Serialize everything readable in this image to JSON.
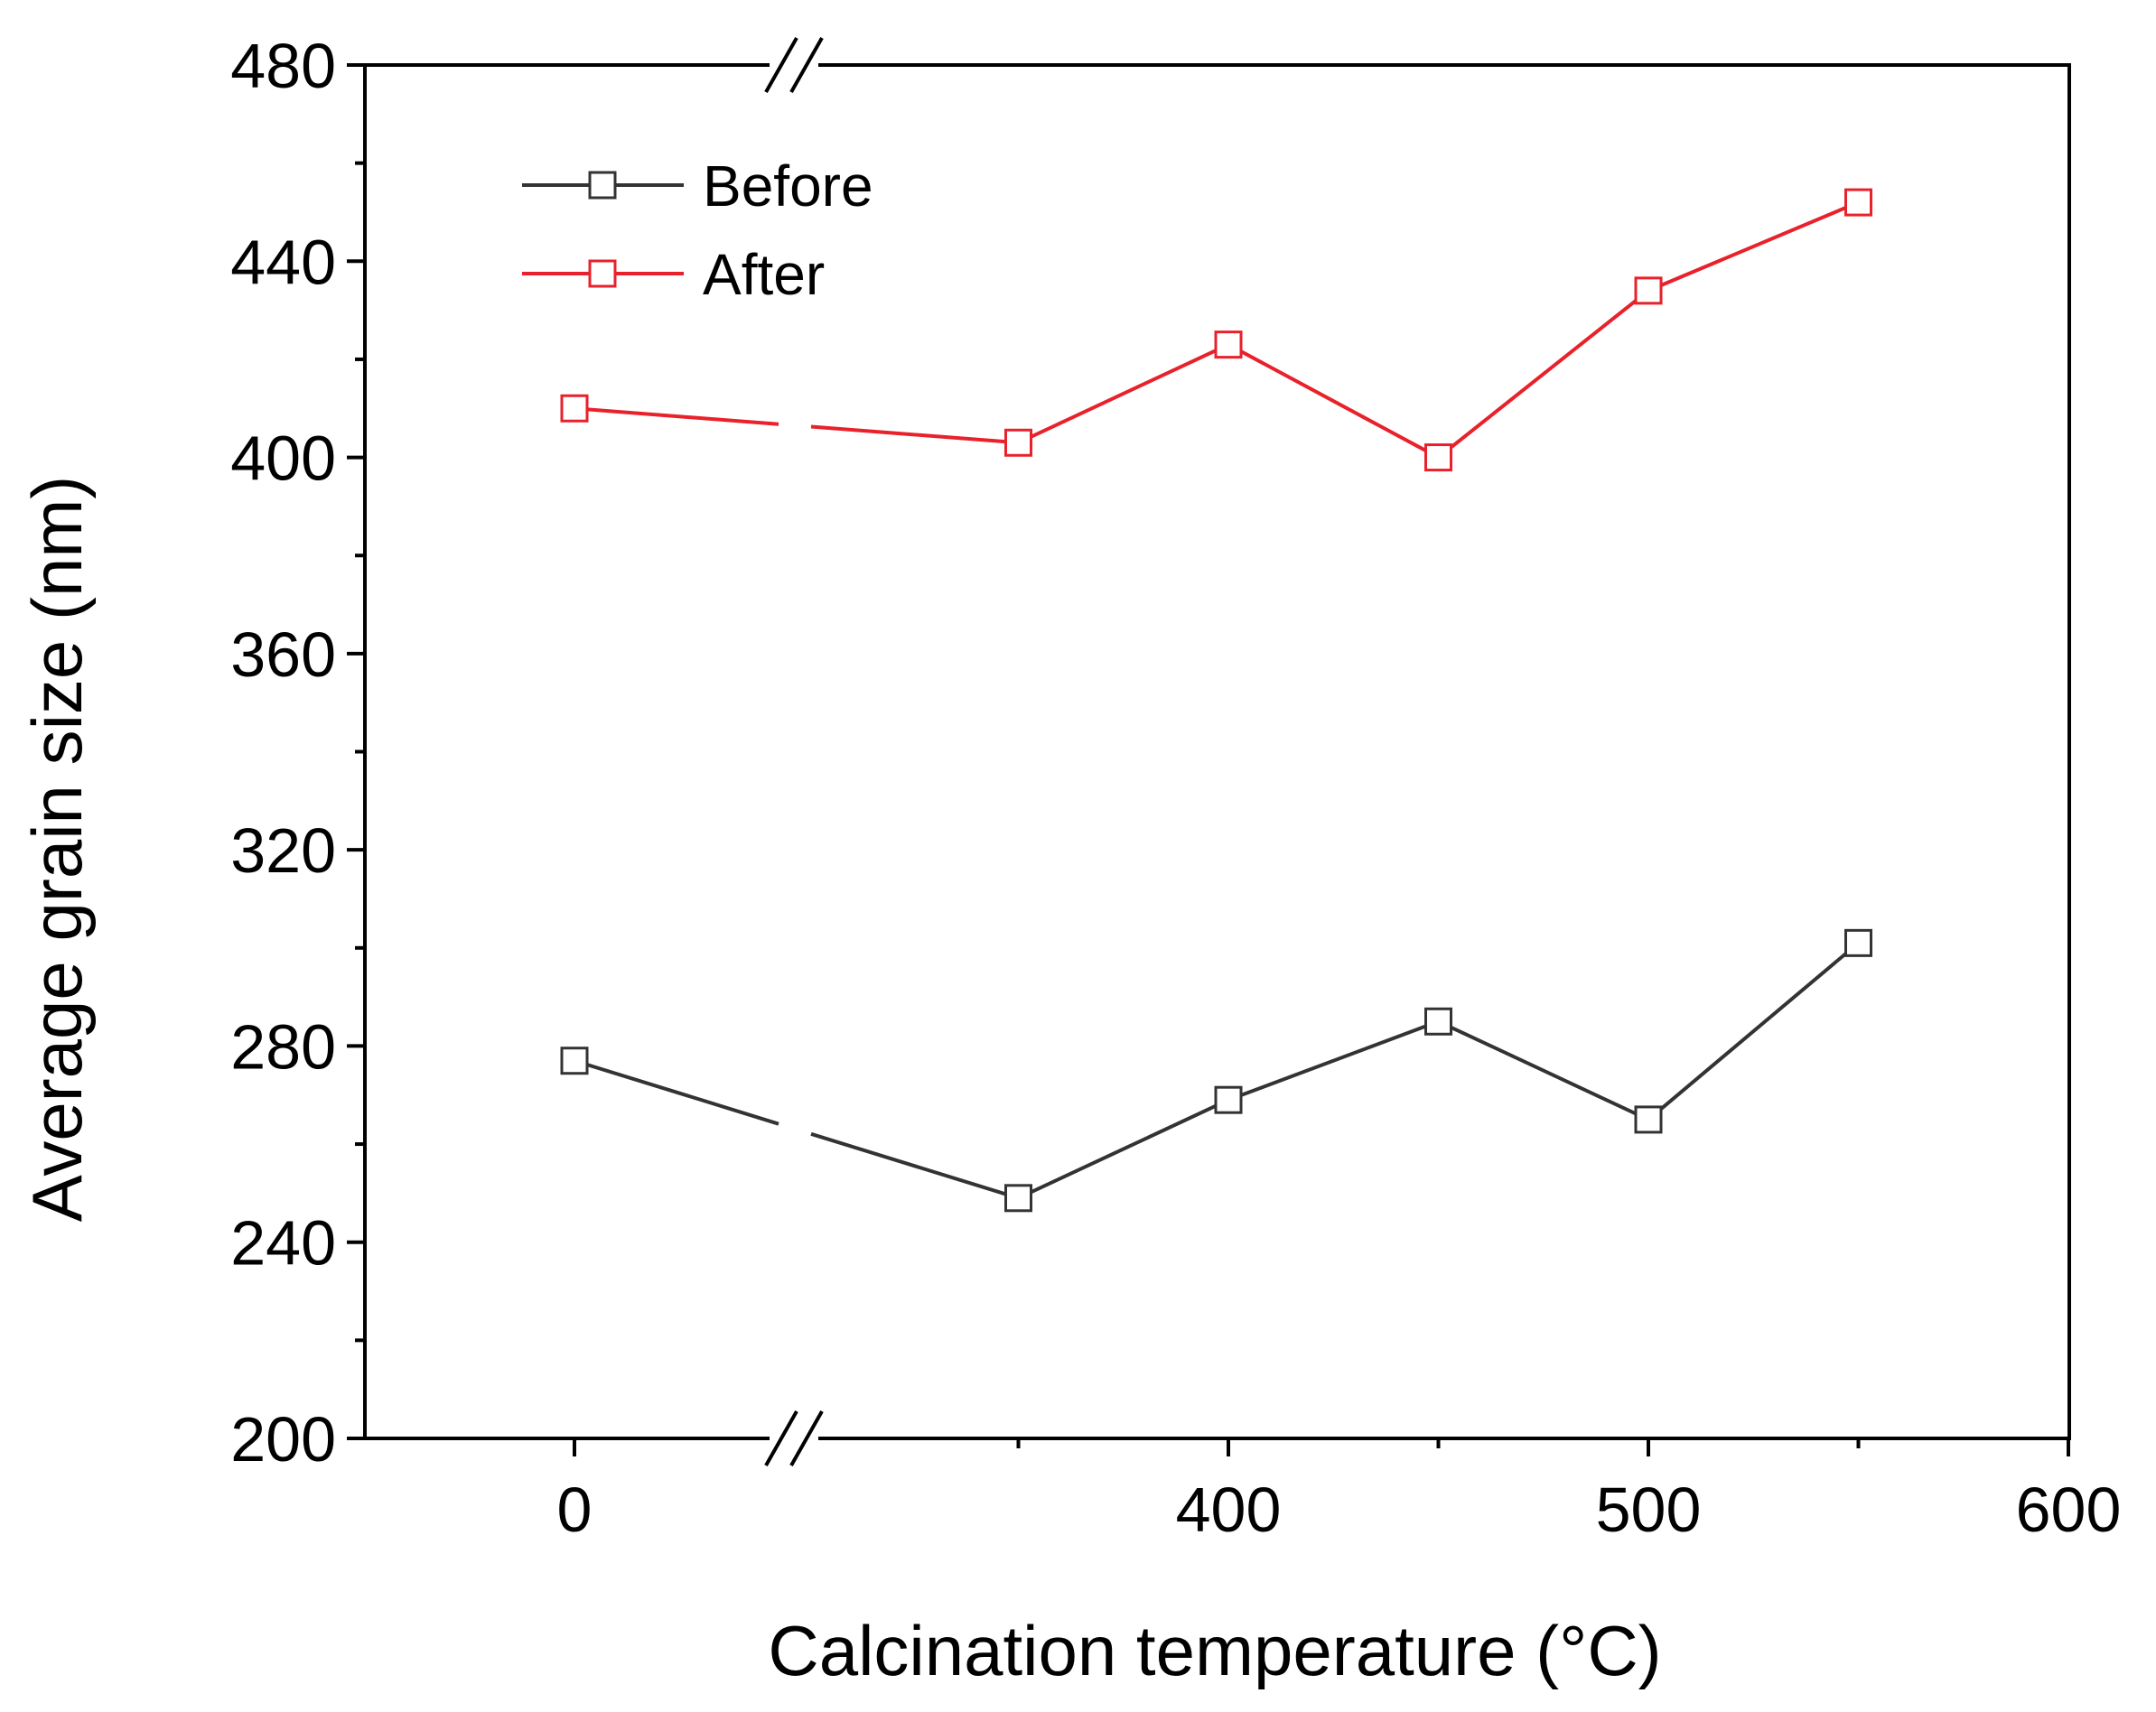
{
  "chart_data": {
    "type": "line",
    "title": "",
    "xlabel": "Calcination temperature (°C)",
    "ylabel": "Average grain size (nm)",
    "ylim": [
      200,
      480
    ],
    "y_ticks": [
      200,
      240,
      280,
      320,
      360,
      400,
      440,
      480
    ],
    "x_ticks": [
      {
        "value": 0,
        "label": "0"
      },
      {
        "value": 400,
        "label": "400"
      },
      {
        "value": 500,
        "label": "500"
      },
      {
        "value": 600,
        "label": "600"
      }
    ],
    "axis_break": "// break on x axis between 0 and 300",
    "x": [
      0,
      350,
      400,
      450,
      500,
      550
    ],
    "series": [
      {
        "name": "Before",
        "color": "#333333",
        "values": [
          277,
          249,
          269,
          285,
          265,
          301
        ]
      },
      {
        "name": "After",
        "color": "#e8212b",
        "values": [
          410,
          403,
          423,
          400,
          434,
          452
        ]
      }
    ],
    "legend": {
      "position": "top-left",
      "entries": [
        "Before",
        "After"
      ]
    }
  }
}
